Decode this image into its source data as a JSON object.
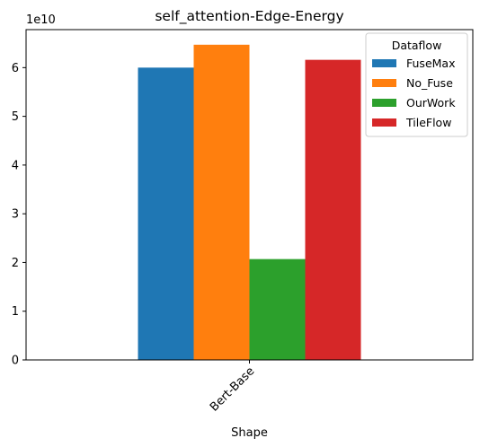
{
  "chart_data": {
    "type": "bar",
    "title": "self_attention-Edge-Energy",
    "xlabel": "Shape",
    "ylabel": "",
    "categories": [
      "Bert-Base"
    ],
    "category_label_rotation": 45,
    "y_scale_note": "1e10",
    "ylim": [
      0,
      67800000000.0
    ],
    "yticks": [
      0,
      10000000000.0,
      20000000000.0,
      30000000000.0,
      40000000000.0,
      50000000000.0,
      60000000000.0
    ],
    "ytick_labels": [
      "0",
      "1",
      "2",
      "3",
      "4",
      "5",
      "6"
    ],
    "grid": false,
    "legend": {
      "title": "Dataflow",
      "placement": "top-right"
    },
    "series": [
      {
        "name": "FuseMax",
        "color": "#1f77b4",
        "values": [
          60000000000.0
        ]
      },
      {
        "name": "No_Fuse",
        "color": "#ff7f0e",
        "values": [
          64700000000.0
        ]
      },
      {
        "name": "OurWork",
        "color": "#2ca02c",
        "values": [
          20700000000.0
        ]
      },
      {
        "name": "TileFlow",
        "color": "#d62728",
        "values": [
          61600000000.0
        ]
      }
    ]
  }
}
